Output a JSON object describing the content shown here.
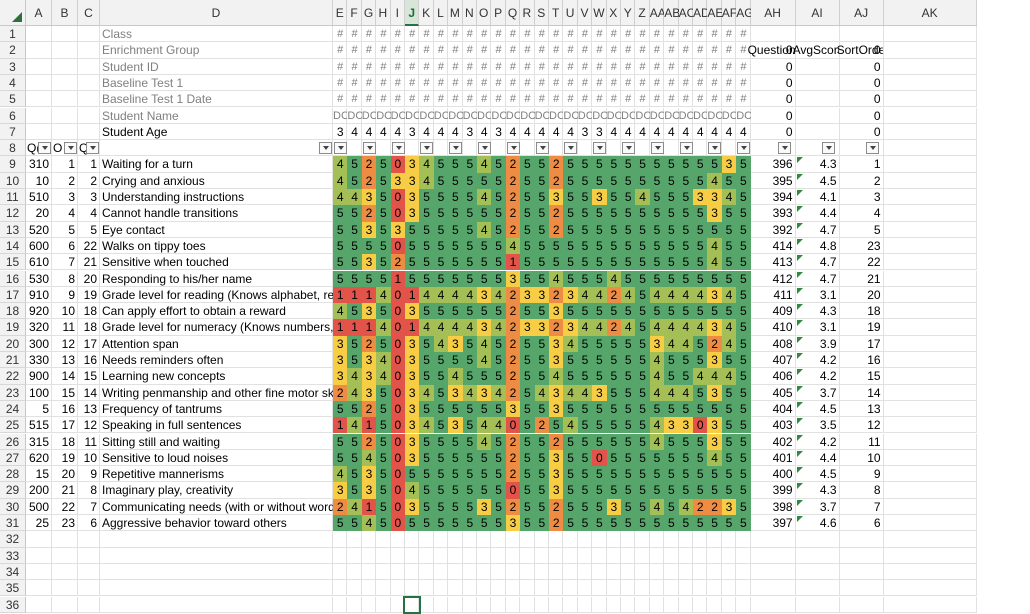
{
  "columns": [
    "A",
    "B",
    "C",
    "D",
    "E",
    "F",
    "G",
    "H",
    "I",
    "J",
    "K",
    "L",
    "M",
    "N",
    "O",
    "P",
    "Q",
    "R",
    "S",
    "T",
    "U",
    "V",
    "W",
    "X",
    "Y",
    "Z",
    "AA",
    "AB",
    "AC",
    "AD",
    "AE",
    "AF",
    "AG",
    "AH",
    "AI",
    "AJ",
    "AK"
  ],
  "selected_column": "J",
  "rows_visible": [
    "1",
    "2",
    "3",
    "4",
    "5",
    "6",
    "7",
    "8",
    "9",
    "10",
    "11",
    "12",
    "13",
    "14",
    "15",
    "16",
    "17",
    "18",
    "19",
    "20",
    "21",
    "22",
    "23",
    "24",
    "25",
    "26",
    "27",
    "28",
    "29",
    "30",
    "31",
    "32",
    "33",
    "34",
    "35",
    "36"
  ],
  "header_labels": [
    "Class",
    "Enrichment Group",
    "Student ID",
    "Baseline Test 1",
    "Baseline Test 1 Date",
    "Student Name",
    "Student Age"
  ],
  "hash_symbol": "#",
  "student_name_abbrev": "DC",
  "student_ages": [
    "3",
    "4",
    "4",
    "4",
    "4",
    "3",
    "4",
    "4",
    "4",
    "3",
    "4",
    "3",
    "4",
    "4",
    "4",
    "4",
    "4",
    "3",
    "3",
    "4",
    "4",
    "4",
    "4",
    "4",
    "4",
    "4",
    "4",
    "4",
    "4",
    "3",
    "4",
    "4",
    "3",
    "4",
    "4"
  ],
  "ah_header_values": [
    "",
    "0",
    "0",
    "0",
    "0",
    "0",
    "0"
  ],
  "ai_header_label": "AvgScore",
  "ah_header_label": "Questions",
  "aj_header_values": [
    "",
    "0",
    "0",
    "0",
    "0",
    "0",
    "0"
  ],
  "aj_header_label": "SortOrder",
  "filter_labels": [
    "Q(",
    "O",
    "Q"
  ],
  "questions": [
    {
      "a": "310",
      "b": "1",
      "c": "1",
      "text": "Waiting for a turn",
      "scores": "4525034555452552555555555553",
      "ah": "396",
      "ai": "4.3",
      "aj": "1"
    },
    {
      "a": "10",
      "b": "2",
      "c": "2",
      "text": "Crying and anxious",
      "scores": "4525334555552552555555555545",
      "ah": "395",
      "ai": "4.5",
      "aj": "2"
    },
    {
      "a": "510",
      "b": "3",
      "c": "3",
      "text": "Understanding instructions",
      "scores": "4435035555452553553554555334",
      "ah": "394",
      "ai": "4.1",
      "aj": "3"
    },
    {
      "a": "20",
      "b": "4",
      "c": "4",
      "text": "Cannot handle transitions",
      "scores": "5525035555552552555555555535",
      "ah": "393",
      "ai": "4.4",
      "aj": "4"
    },
    {
      "a": "520",
      "b": "5",
      "c": "5",
      "text": "Eye contact",
      "scores": "5535355555452552555555555555",
      "ah": "392",
      "ai": "4.7",
      "aj": "5"
    },
    {
      "a": "600",
      "b": "6",
      "c": "22",
      "text": "Walks on tippy toes",
      "scores": "5555055555554555555555555545",
      "ah": "414",
      "ai": "4.8",
      "aj": "23"
    },
    {
      "a": "610",
      "b": "7",
      "c": "21",
      "text": "Sensitive when touched",
      "scores": "5535255555551555555555555545",
      "ah": "413",
      "ai": "4.7",
      "aj": "22"
    },
    {
      "a": "530",
      "b": "8",
      "c": "20",
      "text": "Responding to his/her name",
      "scores": "5555155555553554555455555555",
      "ah": "412",
      "ai": "4.7",
      "aj": "21"
    },
    {
      "a": "910",
      "b": "9",
      "c": "19",
      "text": "Grade level for reading (Knows alphabet, reading",
      "scores": "1114014444342332344245444434",
      "ah": "411",
      "ai": "3.1",
      "aj": "20"
    },
    {
      "a": "920",
      "b": "10",
      "c": "18",
      "text": "Can apply effort to obtain a reward",
      "scores": "4535035555552553555555555555",
      "ah": "409",
      "ai": "4.3",
      "aj": "18"
    },
    {
      "a": "320",
      "b": "11",
      "c": "18",
      "text": "Grade level for numeracy (Knows numbers, math",
      "scores": "1114014444342332344245444434",
      "ah": "410",
      "ai": "3.1",
      "aj": "19"
    },
    {
      "a": "300",
      "b": "12",
      "c": "17",
      "text": "Attention span",
      "scores": "3525035435452553455555344524",
      "ah": "408",
      "ai": "3.9",
      "aj": "17"
    },
    {
      "a": "330",
      "b": "13",
      "c": "16",
      "text": "Needs reminders often",
      "scores": "3534035555452553555555455535",
      "ah": "407",
      "ai": "4.2",
      "aj": "16"
    },
    {
      "a": "900",
      "b": "14",
      "c": "15",
      "text": "Learning new concepts",
      "scores": "3434035545552554555555455444",
      "ah": "406",
      "ai": "4.2",
      "aj": "15"
    },
    {
      "a": "100",
      "b": "15",
      "c": "14",
      "text": "Writing penmanship and other fine motor skills",
      "scores": "2435034534342543443555444535",
      "ah": "405",
      "ai": "3.7",
      "aj": "14"
    },
    {
      "a": "5",
      "b": "16",
      "c": "13",
      "text": "Frequency of tantrums",
      "scores": "5525035555553553555555555555",
      "ah": "404",
      "ai": "4.5",
      "aj": "13"
    },
    {
      "a": "515",
      "b": "17",
      "c": "12",
      "text": "Speaking in full sentences",
      "scores": "1415034535440525455555433035",
      "ah": "403",
      "ai": "3.5",
      "aj": "12"
    },
    {
      "a": "315",
      "b": "18",
      "c": "11",
      "text": "Sitting still and waiting",
      "scores": "5525035555452552555555455535",
      "ah": "402",
      "ai": "4.2",
      "aj": "11"
    },
    {
      "a": "620",
      "b": "19",
      "c": "10",
      "text": "Sensitive to loud noises",
      "scores": "5545035555552553550555555545",
      "ah": "401",
      "ai": "4.4",
      "aj": "10"
    },
    {
      "a": "15",
      "b": "20",
      "c": "9",
      "text": "Repetitive mannerisms",
      "scores": "4535055555552553555555555555",
      "ah": "400",
      "ai": "4.5",
      "aj": "9"
    },
    {
      "a": "200",
      "b": "21",
      "c": "8",
      "text": "Imaginary play, creativity",
      "scores": "3535045555550553555555555555",
      "ah": "399",
      "ai": "4.3",
      "aj": "8"
    },
    {
      "a": "500",
      "b": "22",
      "c": "7",
      "text": "Communicating needs (with or without words)",
      "scores": "2415035555352552555355454223",
      "ah": "398",
      "ai": "3.7",
      "aj": "7"
    },
    {
      "a": "25",
      "b": "23",
      "c": "6",
      "text": "Aggressive behavior toward others",
      "scores": "5545055555553552555555555555",
      "ah": "397",
      "ai": "4.6",
      "aj": "6"
    }
  ],
  "colors": {
    "score_1": "#e2534a",
    "score_2": "#ee8c43",
    "score_3": "#f8cd46",
    "score_4": "#a4bf55",
    "score_5": "#56a66b",
    "score_0": "#e2534a",
    "accent": "#217346"
  }
}
